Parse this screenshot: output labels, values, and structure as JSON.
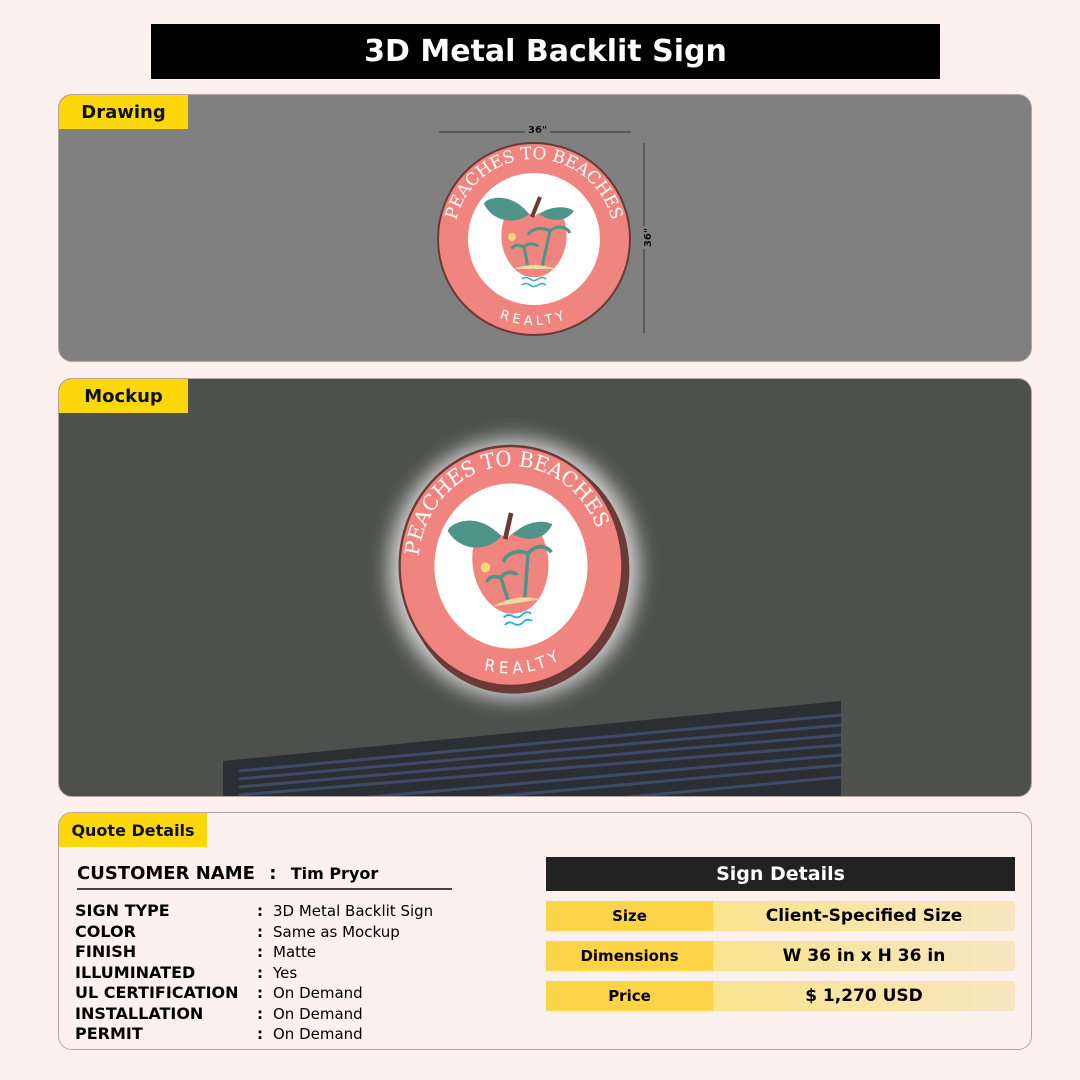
{
  "title": "3D Metal Backlit Sign",
  "drawing": {
    "label": "Drawing",
    "width_dim": "36\"",
    "height_dim": "36\""
  },
  "mockup": {
    "label": "Mockup"
  },
  "logo": {
    "top_text": "PEACHES TO BEACHES",
    "bottom_text": "REALTY"
  },
  "quote": {
    "label": "Quote Details",
    "customer_label": "CUSTOMER NAME",
    "customer_name": "Tim Pryor",
    "rows": [
      {
        "key": "SIGN TYPE",
        "value": "3D Metal Backlit Sign"
      },
      {
        "key": "COLOR",
        "value": "Same as Mockup"
      },
      {
        "key": "FINISH",
        "value": "Matte"
      },
      {
        "key": "ILLUMINATED",
        "value": "Yes"
      },
      {
        "key": "UL CERTIFICATION",
        "value": "On Demand"
      },
      {
        "key": "INSTALLATION",
        "value": "On Demand"
      },
      {
        "key": "PERMIT",
        "value": "On Demand"
      }
    ],
    "separator": ":"
  },
  "sign_details": {
    "title": "Sign Details",
    "rows": [
      {
        "label": "Size",
        "value": "Client-Specified Size"
      },
      {
        "label": "Dimensions",
        "value": "W 36 in x H 36 in"
      },
      {
        "label": "Price",
        "value": "$ 1,270 USD"
      }
    ]
  },
  "colors": {
    "accent": "#fcd80a",
    "sign_pink": "#f0857f",
    "leaf": "#4e9488"
  }
}
